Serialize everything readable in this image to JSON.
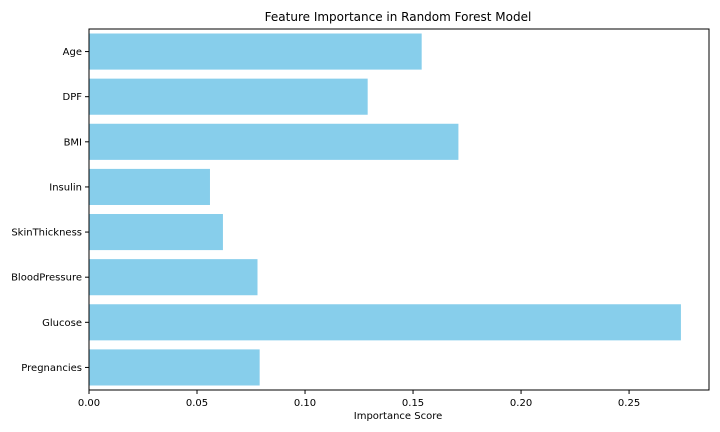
{
  "chart_data": {
    "type": "bar",
    "orientation": "horizontal",
    "title": "Feature Importance in Random Forest Model",
    "xlabel": "Importance Score",
    "ylabel": "",
    "categories": [
      "Pregnancies",
      "Glucose",
      "BloodPressure",
      "SkinThickness",
      "Insulin",
      "BMI",
      "DPF",
      "Age"
    ],
    "values": [
      0.079,
      0.274,
      0.078,
      0.062,
      0.056,
      0.171,
      0.129,
      0.154
    ],
    "xlim": [
      0,
      0.287
    ],
    "xticks": [
      0.0,
      0.05,
      0.1,
      0.15,
      0.2,
      0.25
    ],
    "xtick_labels": [
      "0.00",
      "0.05",
      "0.10",
      "0.15",
      "0.20",
      "0.25"
    ],
    "bar_color": "#87ceeb",
    "grid": false,
    "legend": false
  }
}
